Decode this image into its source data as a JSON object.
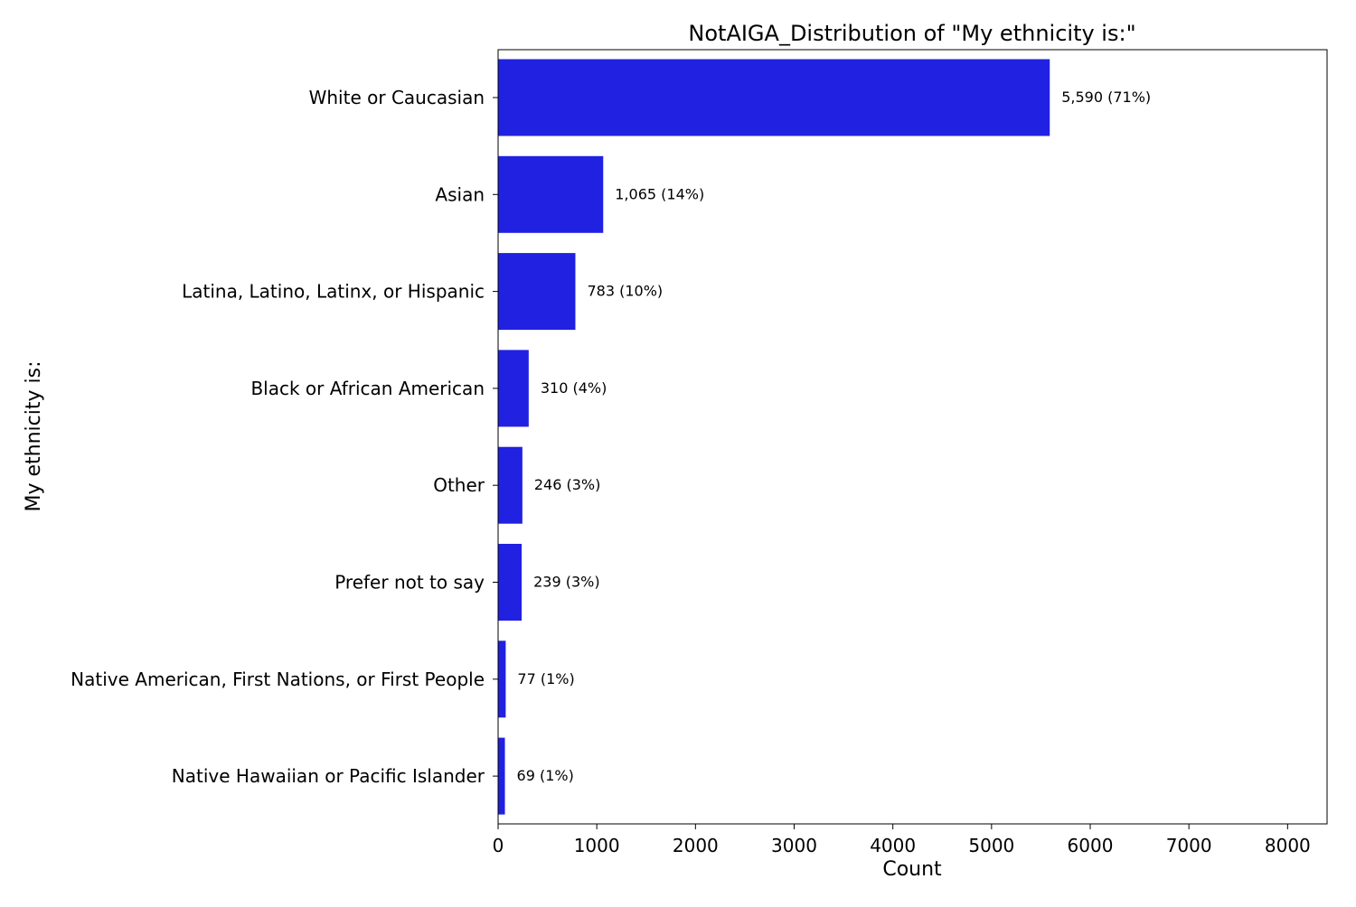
{
  "chart_data": {
    "type": "bar",
    "orientation": "horizontal",
    "title": "NotAIGA_Distribution of \"My ethnicity is:\"",
    "xlabel": "Count",
    "ylabel": "My ethnicity is:",
    "xlim": [
      0,
      8400
    ],
    "xticks": [
      0,
      1000,
      2000,
      3000,
      4000,
      5000,
      6000,
      7000,
      8000
    ],
    "grid": false,
    "legend": "none",
    "bar_color": "#2121e1",
    "categories": [
      "White or Caucasian",
      "Asian",
      "Latina, Latino, Latinx, or Hispanic",
      "Black or African American",
      "Other",
      "Prefer not to say",
      "Native American, First Nations, or First People",
      "Native Hawaiian or Pacific Islander"
    ],
    "values": [
      5590,
      1065,
      783,
      310,
      246,
      239,
      77,
      69
    ],
    "data_labels": [
      "5,590 (71%)",
      "1,065 (14%)",
      "783 (10%)",
      "310 (4%)",
      "246 (3%)",
      "239 (3%)",
      "77 (1%)",
      "69 (1%)"
    ]
  }
}
